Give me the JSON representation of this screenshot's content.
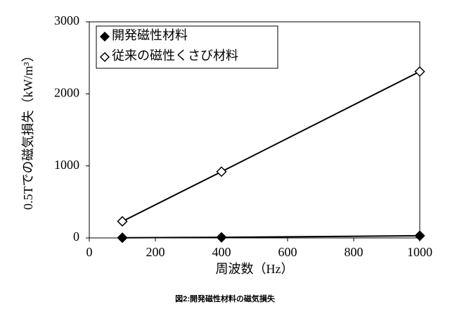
{
  "chart_data": {
    "type": "line",
    "xlabel": "周波数（Hz）",
    "ylabel": "0.5Tでの磁気損失（kW/m³）",
    "caption": "図2:開発磁性材料の磁気損失",
    "x": [
      100,
      400,
      1000
    ],
    "series": [
      {
        "name": "開発磁性材料",
        "color": "#000000",
        "marker": "filled-diamond",
        "values": [
          3,
          8,
          30
        ]
      },
      {
        "name": "従来の磁性くさび材料",
        "color": "#000000",
        "marker": "open-diamond",
        "values": [
          230,
          920,
          2310
        ]
      }
    ],
    "xlim": [
      0,
      1000
    ],
    "xticks": [
      0,
      200,
      400,
      600,
      800,
      1000
    ],
    "ylim": [
      0,
      3000
    ],
    "yticks": [
      0,
      1000,
      2000,
      3000
    ],
    "grid": false,
    "legend": "top-left"
  }
}
